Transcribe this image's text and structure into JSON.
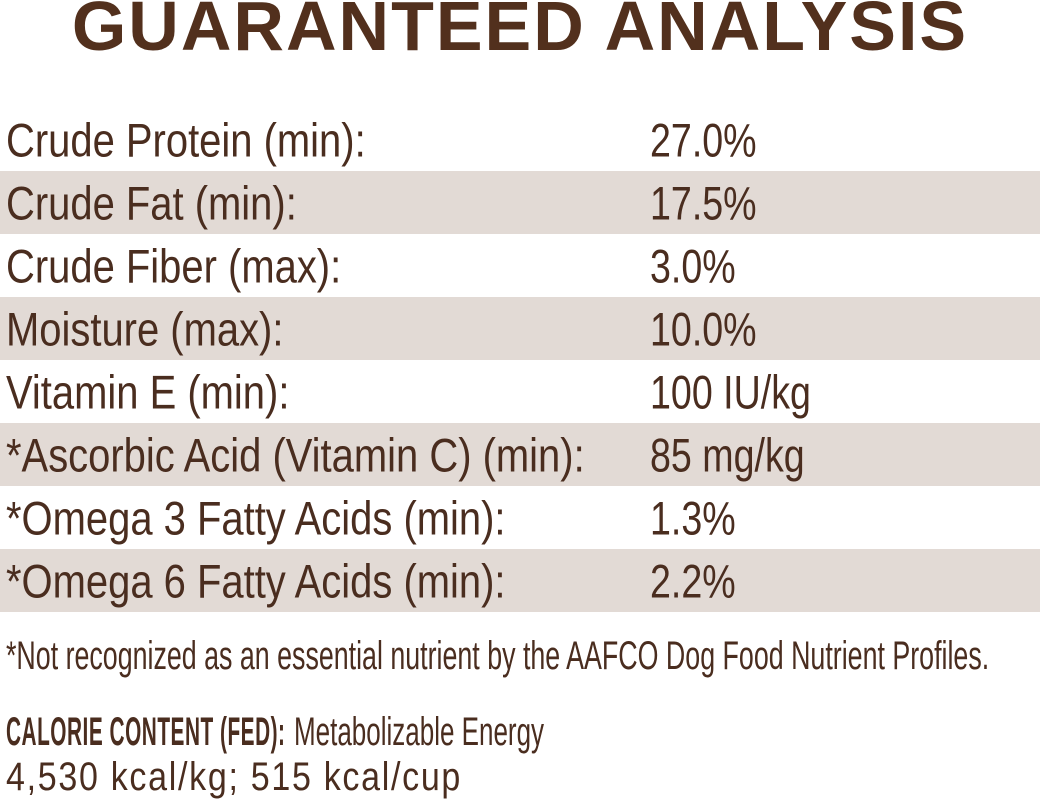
{
  "title": "GUARANTEED ANALYSIS",
  "table": {
    "rows": [
      {
        "label": "Crude Protein (min):",
        "value": "27.0%"
      },
      {
        "label": "Crude Fat (min):",
        "value": "17.5%"
      },
      {
        "label": "Crude Fiber (max):",
        "value": "3.0%"
      },
      {
        "label": "Moisture (max):",
        "value": "10.0%"
      },
      {
        "label": "Vitamin E (min):",
        "value": "100 IU/kg"
      },
      {
        "label": "*Ascorbic Acid (Vitamin C) (min):",
        "value": "85 mg/kg"
      },
      {
        "label": "*Omega 3 Fatty Acids (min):",
        "value": "1.3%"
      },
      {
        "label": "*Omega 6 Fatty Acids (min):",
        "value": "2.2%"
      }
    ]
  },
  "footnote": "*Not recognized as an essential nutrient by the AAFCO Dog Food Nutrient Profiles.",
  "calorie": {
    "heading": "CALORIE CONTENT (FED):",
    "subheading": "Metabolizable Energy",
    "values": "4,530 kcal/kg; 515 kcal/cup"
  },
  "colors": {
    "title_brown": "#52301d",
    "text_brown": "#4a2d1f",
    "stripe_beige": "#e2dad5",
    "background": "#ffffff"
  }
}
